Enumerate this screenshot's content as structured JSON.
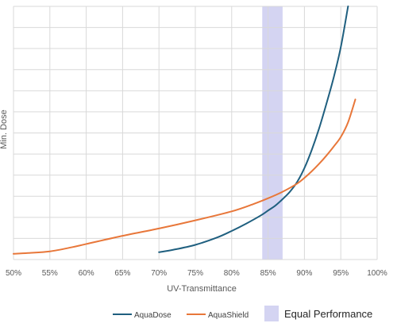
{
  "chart_data": {
    "type": "line",
    "title": "",
    "xlabel": "UV-Transmittance",
    "ylabel": "Min. Dose",
    "xlim": [
      50,
      100
    ],
    "x_ticks": [
      50,
      55,
      60,
      65,
      70,
      75,
      80,
      85,
      90,
      95,
      100
    ],
    "x_tick_labels": [
      "50%",
      "55%",
      "60%",
      "65%",
      "70%",
      "75%",
      "80%",
      "85%",
      "90%",
      "95%",
      "100%"
    ],
    "y_tick_labels_shown": false,
    "y_grid_lines": 12,
    "grid": true,
    "legend_position": "bottom",
    "series": [
      {
        "name": "AquaDose",
        "color": "#1f5f7f",
        "x": [
          70,
          72,
          75,
          78,
          80,
          82,
          84,
          85,
          86,
          87,
          88,
          89,
          90,
          91,
          92,
          93,
          94,
          95,
          96
        ],
        "y": [
          0.9,
          1.2,
          1.8,
          2.7,
          3.5,
          4.4,
          5.4,
          6.0,
          6.6,
          7.4,
          8.3,
          9.5,
          11.2,
          13.4,
          16.0,
          19.0,
          22.2,
          26.0,
          31.0
        ]
      },
      {
        "name": "AquaShield",
        "color": "#e8773a",
        "x": [
          50,
          52,
          55,
          58,
          60,
          65,
          70,
          75,
          80,
          83,
          85,
          87,
          89,
          90,
          91,
          92,
          93,
          94,
          95,
          96,
          97
        ],
        "y": [
          0.7,
          0.8,
          1.0,
          1.5,
          1.9,
          2.9,
          3.8,
          4.8,
          5.9,
          6.8,
          7.5,
          8.3,
          9.3,
          10.0,
          10.8,
          11.7,
          12.7,
          13.8,
          15.0,
          16.8,
          19.6
        ]
      }
    ],
    "highlight_band": {
      "label": "Equal Performance",
      "x_start": 84.2,
      "x_end": 87.0,
      "color": "#d4d4f2"
    }
  }
}
